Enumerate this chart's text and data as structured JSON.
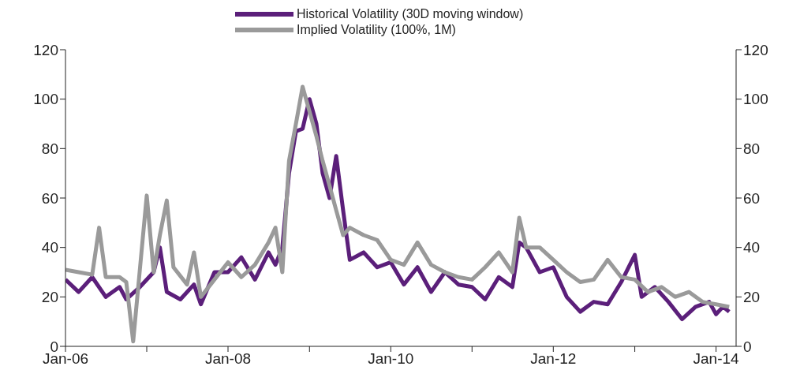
{
  "chart_data": {
    "type": "line",
    "legend": "top",
    "grid": false,
    "marker": "none",
    "line_style": "solid",
    "xlim": [
      "2006-01",
      "2014-04"
    ],
    "xticks": [
      {
        "value": "2006-01",
        "label": "Jan-06"
      },
      {
        "value": "2007-01",
        "label": null
      },
      {
        "value": "2008-01",
        "label": "Jan-08"
      },
      {
        "value": "2009-01",
        "label": null
      },
      {
        "value": "2010-01",
        "label": "Jan-10"
      },
      {
        "value": "2011-01",
        "label": null
      },
      {
        "value": "2012-01",
        "label": "Jan-12"
      },
      {
        "value": "2013-01",
        "label": null
      },
      {
        "value": "2014-01",
        "label": "Jan-14"
      }
    ],
    "ylim": [
      0,
      120
    ],
    "yticks": [
      0,
      20,
      40,
      60,
      80,
      100,
      120
    ],
    "y2lim": [
      0,
      120
    ],
    "y2ticks": [
      0,
      20,
      40,
      60,
      80,
      100,
      120
    ],
    "series": [
      {
        "name": "Historical Volatility (30D moving window)",
        "color": "#5b1f7a",
        "x": [
          "2006-01",
          "2006-03",
          "2006-05",
          "2006-07",
          "2006-09",
          "2006-10",
          "2006-12",
          "2007-02",
          "2007-03",
          "2007-04",
          "2007-06",
          "2007-08",
          "2007-09",
          "2007-11",
          "2008-01",
          "2008-03",
          "2008-05",
          "2008-07",
          "2008-08",
          "2008-09",
          "2008-10",
          "2008-11",
          "2008-12",
          "2009-01",
          "2009-02",
          "2009-03",
          "2009-04",
          "2009-05",
          "2009-06",
          "2009-07",
          "2009-09",
          "2009-11",
          "2010-01",
          "2010-03",
          "2010-05",
          "2010-07",
          "2010-09",
          "2010-11",
          "2011-01",
          "2011-03",
          "2011-05",
          "2011-07",
          "2011-08",
          "2011-09",
          "2011-11",
          "2012-01",
          "2012-03",
          "2012-05",
          "2012-07",
          "2012-09",
          "2012-11",
          "2013-01",
          "2013-02",
          "2013-04",
          "2013-06",
          "2013-08",
          "2013-10",
          "2013-12",
          "2014-01",
          "2014-02",
          "2014-03"
        ],
        "values": [
          27,
          22,
          28,
          20,
          24,
          19,
          24,
          30,
          40,
          22,
          19,
          25,
          17,
          30,
          30,
          36,
          27,
          38,
          33,
          40,
          70,
          87,
          88,
          100,
          90,
          70,
          60,
          77,
          55,
          35,
          38,
          32,
          34,
          25,
          32,
          22,
          30,
          25,
          24,
          19,
          28,
          24,
          42,
          40,
          30,
          32,
          20,
          14,
          18,
          17,
          26,
          37,
          20,
          24,
          18,
          11,
          16,
          18,
          13,
          16,
          14
        ]
      },
      {
        "name": "Implied Volatility (100%, 1M)",
        "color": "#9a9a9a",
        "x": [
          "2006-01",
          "2006-03",
          "2006-05",
          "2006-06",
          "2006-07",
          "2006-09",
          "2006-10",
          "2006-11",
          "2006-12",
          "2007-01",
          "2007-02",
          "2007-03",
          "2007-04",
          "2007-05",
          "2007-07",
          "2007-08",
          "2007-09",
          "2007-11",
          "2008-01",
          "2008-03",
          "2008-05",
          "2008-07",
          "2008-08",
          "2008-09",
          "2008-10",
          "2008-11",
          "2008-12",
          "2009-01",
          "2009-02",
          "2009-03",
          "2009-04",
          "2009-05",
          "2009-06",
          "2009-07",
          "2009-09",
          "2009-11",
          "2010-01",
          "2010-03",
          "2010-05",
          "2010-07",
          "2010-09",
          "2010-11",
          "2011-01",
          "2011-03",
          "2011-05",
          "2011-07",
          "2011-08",
          "2011-09",
          "2011-11",
          "2012-01",
          "2012-03",
          "2012-05",
          "2012-07",
          "2012-09",
          "2012-11",
          "2013-01",
          "2013-03",
          "2013-05",
          "2013-07",
          "2013-09",
          "2013-11",
          "2014-01",
          "2014-03"
        ],
        "values": [
          31,
          30,
          29,
          48,
          28,
          28,
          26,
          2,
          31,
          61,
          30,
          45,
          59,
          32,
          25,
          38,
          20,
          27,
          34,
          28,
          33,
          42,
          48,
          30,
          75,
          90,
          105,
          95,
          85,
          75,
          65,
          55,
          45,
          48,
          45,
          43,
          35,
          33,
          42,
          33,
          30,
          28,
          27,
          32,
          38,
          30,
          52,
          40,
          40,
          35,
          30,
          26,
          27,
          35,
          28,
          27,
          22,
          24,
          20,
          22,
          18,
          17,
          16
        ]
      }
    ]
  }
}
